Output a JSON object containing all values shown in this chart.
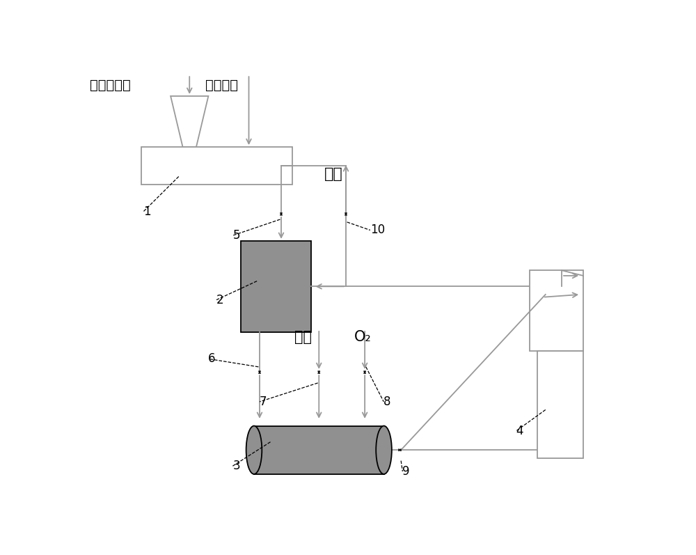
{
  "bg_color": "#ffffff",
  "line_color": "#999999",
  "fill_color": "#909090",
  "text_biomass": "生物质原料",
  "text_alkali": "碱性药剂",
  "text_vent": "排空",
  "text_steam": "蒸汽",
  "text_o2": "O₂",
  "label_1": "1",
  "label_2": "2",
  "label_3": "3",
  "label_4": "4",
  "label_5": "5",
  "label_6": "6",
  "label_7": "7",
  "label_8": "8",
  "label_9": "9",
  "label_10": "10",
  "valve_size": 0.21,
  "lw": 1.3
}
